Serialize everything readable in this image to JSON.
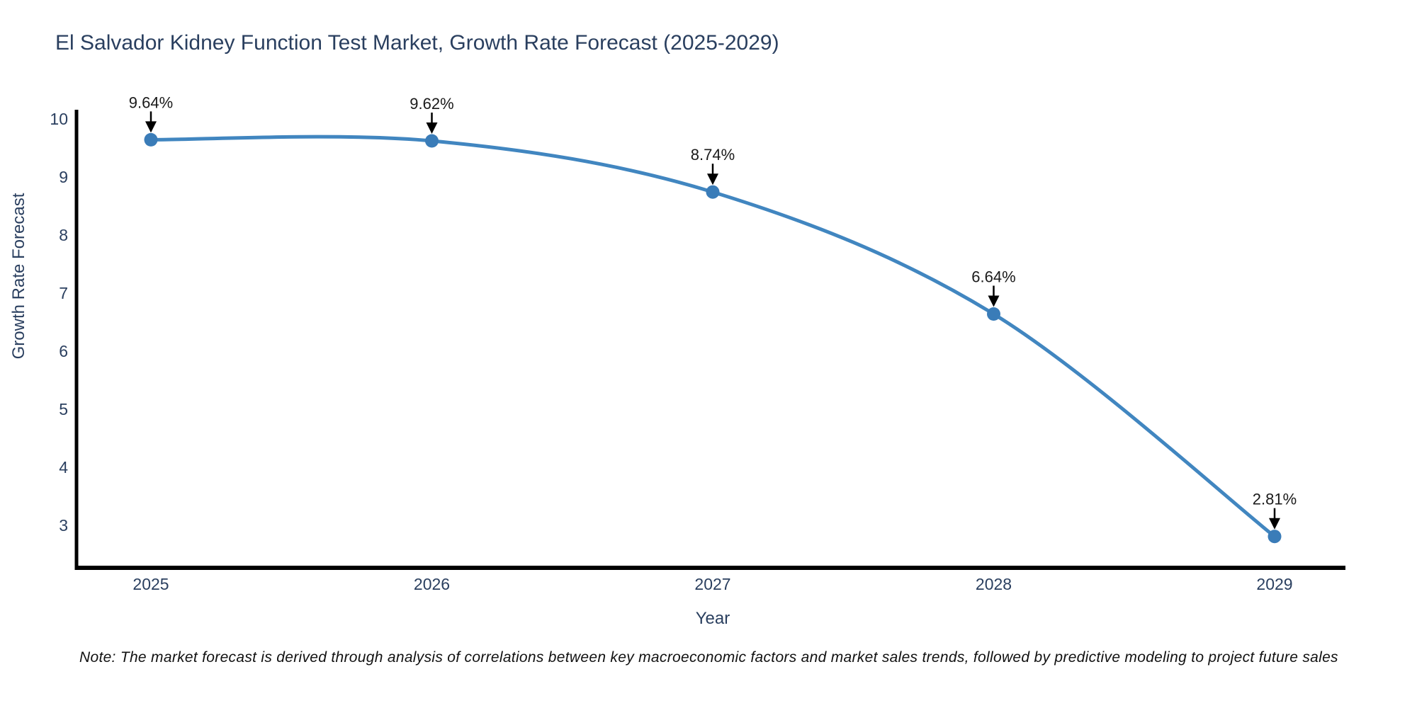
{
  "chart": {
    "colors": {
      "line": "#4186c0",
      "marker": "#3a7cb8",
      "axis": "#000000",
      "axis_text": "#2a3f5f",
      "data_label": "#1a1a1a",
      "note_text": "#111111",
      "background": "#ffffff"
    }
  },
  "chart_data": {
    "type": "line",
    "title": "El Salvador Kidney Function Test Market, Growth Rate Forecast (2025-2029)",
    "xlabel": "Year",
    "ylabel": "Growth Rate Forecast",
    "x": [
      "2025",
      "2026",
      "2027",
      "2028",
      "2029"
    ],
    "values": [
      9.64,
      9.62,
      8.74,
      6.64,
      2.81
    ],
    "point_labels": [
      "9.64%",
      "9.62%",
      "8.74%",
      "6.64%",
      "2.81%"
    ],
    "yticks": [
      3,
      4,
      5,
      6,
      7,
      8,
      9,
      10
    ],
    "ylim": [
      2.27,
      10.12
    ],
    "grid": false,
    "legend": false,
    "smooth": true,
    "annotations": "arrow-down-to-point",
    "note": "Note: The market forecast is derived through analysis of correlations between key macroeconomic factors and market sales trends, followed by predictive modeling to project future sales"
  }
}
